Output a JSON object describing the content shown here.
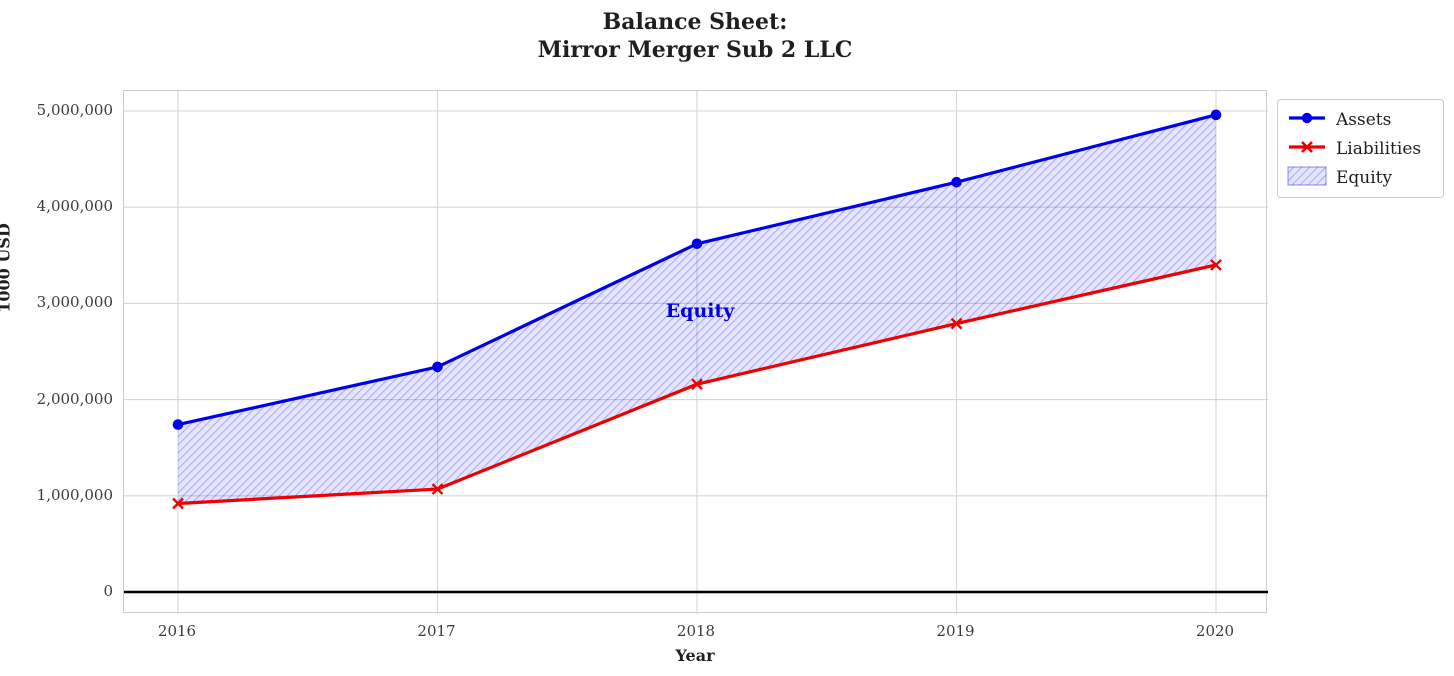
{
  "chart": {
    "title_line1": "Balance Sheet:",
    "title_line2": "Mirror Merger Sub 2 LLC",
    "xlabel": "Year",
    "ylabel": "1000 USD",
    "annotation": "Equity"
  },
  "legend": {
    "items": [
      {
        "label": "Assets",
        "swatch": "blue-line-circle-marker"
      },
      {
        "label": "Liabilities",
        "swatch": "red-line-x-marker"
      },
      {
        "label": "Equity",
        "swatch": "hatched-patch"
      }
    ]
  },
  "colors": {
    "assets": "#0000ee",
    "liabilities": "#ee0000",
    "equity_fill": "#0000ff",
    "equity_fill_opacity": 0.1,
    "equity_hatch": "#9a9ae8",
    "grid": "#d6d6d6",
    "zero_line": "#000000",
    "annotation_text": "#0000dd"
  },
  "chart_data": {
    "type": "line",
    "title": "Balance Sheet:\nMirror Merger Sub 2 LLC",
    "xlabel": "Year",
    "ylabel": "1000 USD",
    "categories": [
      "2016",
      "2017",
      "2018",
      "2019",
      "2020"
    ],
    "series": [
      {
        "name": "Assets",
        "color": "#0000ee",
        "marker": "circle",
        "values": [
          1740000,
          2340000,
          3620000,
          4260000,
          4960000
        ]
      },
      {
        "name": "Liabilities",
        "color": "#ee0000",
        "marker": "x",
        "values": [
          920000,
          1070000,
          2160000,
          2790000,
          3400000
        ]
      }
    ],
    "area_between": {
      "name": "Equity",
      "upper": "Assets",
      "lower": "Liabilities",
      "hatch": "//"
    },
    "yticks": [
      0,
      1000000,
      2000000,
      3000000,
      4000000,
      5000000
    ],
    "ytick_labels": [
      "0",
      "1,000,000",
      "2,000,000",
      "3,000,000",
      "4,000,000",
      "5,000,000"
    ],
    "ylim": [
      -230000,
      5210000
    ],
    "grid": true,
    "zero_line": true,
    "legend_position": "upper-right-outside"
  }
}
